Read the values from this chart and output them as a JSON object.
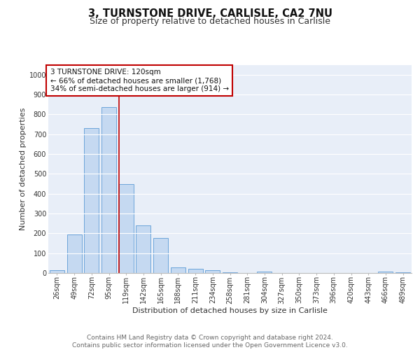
{
  "title": "3, TURNSTONE DRIVE, CARLISLE, CA2 7NU",
  "subtitle": "Size of property relative to detached houses in Carlisle",
  "xlabel": "Distribution of detached houses by size in Carlisle",
  "ylabel": "Number of detached properties",
  "bar_labels": [
    "26sqm",
    "49sqm",
    "72sqm",
    "95sqm",
    "119sqm",
    "142sqm",
    "165sqm",
    "188sqm",
    "211sqm",
    "234sqm",
    "258sqm",
    "281sqm",
    "304sqm",
    "327sqm",
    "350sqm",
    "373sqm",
    "396sqm",
    "420sqm",
    "443sqm",
    "466sqm",
    "489sqm"
  ],
  "bar_values": [
    15,
    195,
    730,
    835,
    448,
    240,
    175,
    30,
    20,
    15,
    5,
    0,
    8,
    0,
    0,
    0,
    0,
    0,
    0,
    8,
    5
  ],
  "bar_color": "#c5d9f1",
  "bar_edge_color": "#5b9bd5",
  "vline_x_index": 4,
  "vline_color": "#c00000",
  "annotation_text": "3 TURNSTONE DRIVE: 120sqm\n← 66% of detached houses are smaller (1,768)\n34% of semi-detached houses are larger (914) →",
  "annotation_box_color": "#c00000",
  "ylim": [
    0,
    1050
  ],
  "yticks": [
    0,
    100,
    200,
    300,
    400,
    500,
    600,
    700,
    800,
    900,
    1000
  ],
  "background_color": "#e8eef8",
  "footer_text": "Contains HM Land Registry data © Crown copyright and database right 2024.\nContains public sector information licensed under the Open Government Licence v3.0.",
  "title_fontsize": 10.5,
  "subtitle_fontsize": 9,
  "axis_label_fontsize": 8,
  "tick_fontsize": 7,
  "annotation_fontsize": 7.5,
  "footer_fontsize": 6.5
}
